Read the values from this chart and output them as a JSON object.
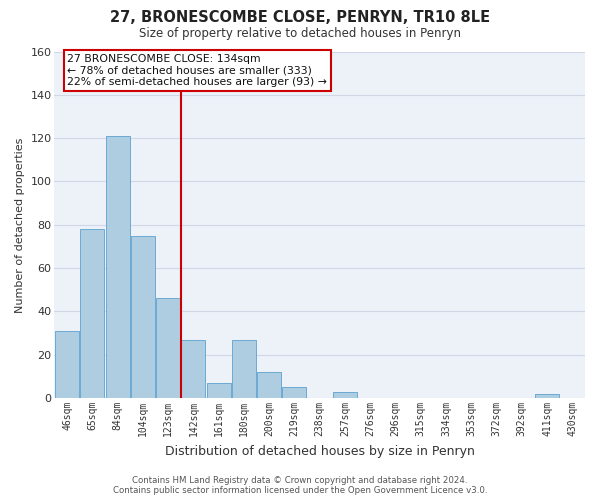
{
  "title": "27, BRONESCOMBE CLOSE, PENRYN, TR10 8LE",
  "subtitle": "Size of property relative to detached houses in Penryn",
  "xlabel": "Distribution of detached houses by size in Penryn",
  "ylabel": "Number of detached properties",
  "bar_labels": [
    "46sqm",
    "65sqm",
    "84sqm",
    "104sqm",
    "123sqm",
    "142sqm",
    "161sqm",
    "180sqm",
    "200sqm",
    "219sqm",
    "238sqm",
    "257sqm",
    "276sqm",
    "296sqm",
    "315sqm",
    "334sqm",
    "353sqm",
    "372sqm",
    "392sqm",
    "411sqm",
    "430sqm"
  ],
  "bar_values": [
    31,
    78,
    121,
    75,
    46,
    27,
    7,
    27,
    12,
    5,
    0,
    3,
    0,
    0,
    0,
    0,
    0,
    0,
    0,
    2,
    0
  ],
  "bar_color": "#aecde0",
  "bar_edge_color": "#6aaad4",
  "ylim": [
    0,
    160
  ],
  "yticks": [
    0,
    20,
    40,
    60,
    80,
    100,
    120,
    140,
    160
  ],
  "property_line_index": 4.5,
  "property_line_color": "#cc0000",
  "annotation_text_line1": "27 BRONESCOMBE CLOSE: 134sqm",
  "annotation_text_line2": "← 78% of detached houses are smaller (333)",
  "annotation_text_line3": "22% of semi-detached houses are larger (93) →",
  "annotation_box_color": "#cc0000",
  "footer_line1": "Contains HM Land Registry data © Crown copyright and database right 2024.",
  "footer_line2": "Contains public sector information licensed under the Open Government Licence v3.0.",
  "grid_color": "#d0d8e8",
  "background_color": "#edf1f8"
}
